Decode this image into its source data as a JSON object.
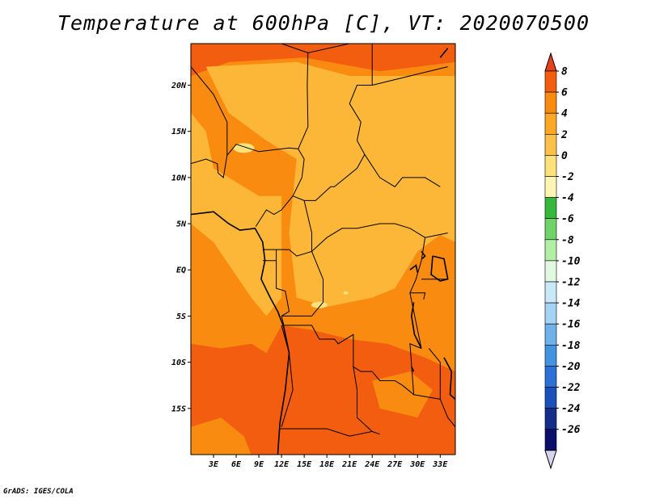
{
  "chart_data": {
    "type": "heatmap",
    "title": "Temperature at 600hPa [C], VT: 2020070500",
    "credit": "GrADS: IGES/COLA",
    "x_ticks": [
      "3E",
      "6E",
      "9E",
      "12E",
      "15E",
      "18E",
      "21E",
      "24E",
      "27E",
      "30E",
      "33E"
    ],
    "x_tick_values": [
      3,
      6,
      9,
      12,
      15,
      18,
      21,
      24,
      27,
      30,
      33
    ],
    "y_ticks": [
      "20N",
      "15N",
      "10N",
      "5N",
      "EQ",
      "5S",
      "10S",
      "15S"
    ],
    "y_tick_values": [
      20,
      15,
      10,
      5,
      0,
      -5,
      -10,
      -15
    ],
    "xlim": [
      0,
      35
    ],
    "ylim": [
      -20,
      24.5
    ],
    "colorbar": {
      "labels": [
        "8",
        "6",
        "4",
        "2",
        "0",
        "-2",
        "-4",
        "-6",
        "-8",
        "-10",
        "-12",
        "-14",
        "-16",
        "-18",
        "-20",
        "-22",
        "-24",
        "-26"
      ],
      "colors": [
        "#e8401a",
        "#f25d0f",
        "#f98b10",
        "#fca825",
        "#fcc14a",
        "#fde17a",
        "#fdf6b3",
        "#37b83d",
        "#6fd36a",
        "#b2eea5",
        "#e3f8e0",
        "#c9e9f9",
        "#a4d3f3",
        "#6fb2ea",
        "#4593e0",
        "#2c72d6",
        "#1a50b8",
        "#142e8a",
        "#0c0f6a",
        "#d8d4f0"
      ]
    },
    "fields": [
      {
        "name": "band_4_to_6",
        "color": "#f25d0f"
      },
      {
        "name": "band_2_to_4",
        "color": "#f98b10"
      },
      {
        "name": "band_0_to_2",
        "color": "#fcb739"
      },
      {
        "name": "band_-2_to_0",
        "color": "#fde17a"
      }
    ]
  }
}
